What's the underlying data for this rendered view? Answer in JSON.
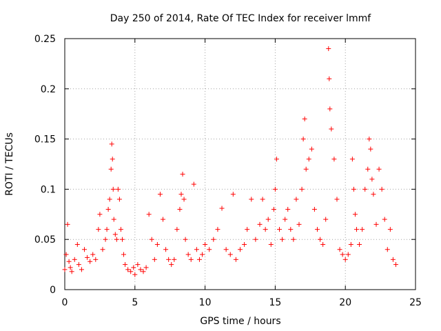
{
  "chart_data": {
    "type": "scatter",
    "title": "Day 250 of 2014, Rate Of TEC Index for receiver lmmf",
    "xlabel": "GPS time / hours",
    "ylabel": "ROTI / TECUs",
    "xlim": [
      0,
      25
    ],
    "ylim": [
      0,
      0.25
    ],
    "xticks": [
      0,
      5,
      10,
      15,
      20,
      25
    ],
    "yticks": [
      0,
      0.05,
      0.1,
      0.15,
      0.2,
      0.25
    ],
    "xtick_labels": [
      "0",
      "5",
      "10",
      "15",
      "20",
      "25"
    ],
    "ytick_labels": [
      "0",
      "0.05",
      "0.1",
      "0.15",
      "0.2",
      "0.25"
    ],
    "grid": true,
    "marker": "+",
    "color": "#ff0000",
    "series": [
      {
        "name": "ROTI",
        "x": [
          0.0,
          0.1,
          0.2,
          0.3,
          0.4,
          0.5,
          0.7,
          0.9,
          1.0,
          1.2,
          1.4,
          1.6,
          1.8,
          2.0,
          2.2,
          2.4,
          2.5,
          2.7,
          2.9,
          3.0,
          3.1,
          3.2,
          3.3,
          3.35,
          3.4,
          3.45,
          3.5,
          3.6,
          3.7,
          3.8,
          3.9,
          4.0,
          4.1,
          4.2,
          4.3,
          4.5,
          4.7,
          4.9,
          5.0,
          5.2,
          5.4,
          5.6,
          5.8,
          6.0,
          6.2,
          6.4,
          6.6,
          6.8,
          7.0,
          7.2,
          7.4,
          7.6,
          7.8,
          8.0,
          8.2,
          8.3,
          8.4,
          8.5,
          8.6,
          8.8,
          9.0,
          9.2,
          9.4,
          9.6,
          9.8,
          10.0,
          10.3,
          10.6,
          10.9,
          11.2,
          11.5,
          11.8,
          12.0,
          12.2,
          12.5,
          12.8,
          13.0,
          13.3,
          13.6,
          13.9,
          14.1,
          14.3,
          14.5,
          14.7,
          14.9,
          15.0,
          15.1,
          15.3,
          15.5,
          15.7,
          15.9,
          16.1,
          16.3,
          16.5,
          16.7,
          16.9,
          17.0,
          17.1,
          17.2,
          17.4,
          17.6,
          17.8,
          18.0,
          18.2,
          18.4,
          18.6,
          18.8,
          18.85,
          18.9,
          19.0,
          19.2,
          19.4,
          19.6,
          19.8,
          20.0,
          20.2,
          20.4,
          20.5,
          20.6,
          20.7,
          20.8,
          21.0,
          21.2,
          21.4,
          21.6,
          21.7,
          21.8,
          21.9,
          22.0,
          22.2,
          22.4,
          22.6,
          22.8,
          23.0,
          23.2,
          23.4,
          23.6
        ],
        "y": [
          0.02,
          0.035,
          0.065,
          0.028,
          0.022,
          0.018,
          0.03,
          0.045,
          0.025,
          0.02,
          0.04,
          0.032,
          0.028,
          0.035,
          0.03,
          0.06,
          0.075,
          0.04,
          0.05,
          0.06,
          0.08,
          0.09,
          0.12,
          0.145,
          0.13,
          0.1,
          0.07,
          0.055,
          0.05,
          0.1,
          0.09,
          0.06,
          0.05,
          0.035,
          0.025,
          0.02,
          0.018,
          0.022,
          0.015,
          0.025,
          0.02,
          0.018,
          0.022,
          0.075,
          0.05,
          0.03,
          0.045,
          0.095,
          0.07,
          0.04,
          0.03,
          0.025,
          0.03,
          0.06,
          0.08,
          0.095,
          0.115,
          0.09,
          0.05,
          0.035,
          0.03,
          0.105,
          0.04,
          0.03,
          0.035,
          0.045,
          0.04,
          0.05,
          0.06,
          0.081,
          0.04,
          0.035,
          0.095,
          0.03,
          0.04,
          0.045,
          0.06,
          0.09,
          0.05,
          0.065,
          0.09,
          0.06,
          0.07,
          0.045,
          0.08,
          0.1,
          0.13,
          0.06,
          0.05,
          0.07,
          0.08,
          0.06,
          0.05,
          0.09,
          0.065,
          0.1,
          0.15,
          0.17,
          0.12,
          0.13,
          0.14,
          0.08,
          0.06,
          0.05,
          0.045,
          0.07,
          0.24,
          0.21,
          0.18,
          0.16,
          0.13,
          0.09,
          0.04,
          0.035,
          0.03,
          0.035,
          0.045,
          0.13,
          0.1,
          0.075,
          0.06,
          0.045,
          0.06,
          0.1,
          0.12,
          0.15,
          0.14,
          0.11,
          0.095,
          0.065,
          0.12,
          0.1,
          0.07,
          0.04,
          0.06,
          0.03,
          0.025
        ]
      }
    ]
  }
}
